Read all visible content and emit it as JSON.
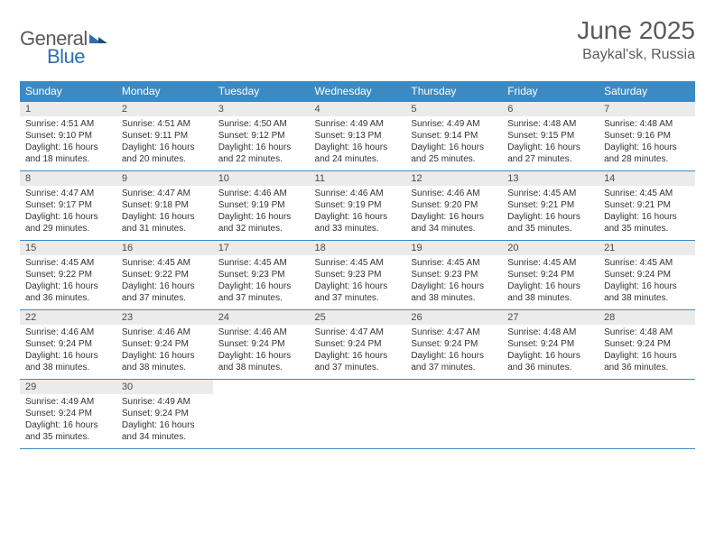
{
  "brand": {
    "part1": "General",
    "part2": "Blue"
  },
  "title": "June 2025",
  "location": "Baykal'sk, Russia",
  "colors": {
    "header_bg": "#3b8ac4",
    "header_text": "#ffffff",
    "rule": "#3b8ac4",
    "daynum_bg": "#ebebeb",
    "text": "#333333",
    "title_text": "#5a5a5a",
    "brand_gray": "#5a5a5a",
    "brand_blue": "#2f6fab"
  },
  "typography": {
    "title_fontsize": 28,
    "location_fontsize": 16,
    "dayhead_fontsize": 12,
    "daynum_fontsize": 11,
    "body_fontsize": 10
  },
  "day_headers": [
    "Sunday",
    "Monday",
    "Tuesday",
    "Wednesday",
    "Thursday",
    "Friday",
    "Saturday"
  ],
  "weeks": [
    [
      {
        "n": "1",
        "sr": "4:51 AM",
        "ss": "9:10 PM",
        "dl": "16 hours and 18 minutes."
      },
      {
        "n": "2",
        "sr": "4:51 AM",
        "ss": "9:11 PM",
        "dl": "16 hours and 20 minutes."
      },
      {
        "n": "3",
        "sr": "4:50 AM",
        "ss": "9:12 PM",
        "dl": "16 hours and 22 minutes."
      },
      {
        "n": "4",
        "sr": "4:49 AM",
        "ss": "9:13 PM",
        "dl": "16 hours and 24 minutes."
      },
      {
        "n": "5",
        "sr": "4:49 AM",
        "ss": "9:14 PM",
        "dl": "16 hours and 25 minutes."
      },
      {
        "n": "6",
        "sr": "4:48 AM",
        "ss": "9:15 PM",
        "dl": "16 hours and 27 minutes."
      },
      {
        "n": "7",
        "sr": "4:48 AM",
        "ss": "9:16 PM",
        "dl": "16 hours and 28 minutes."
      }
    ],
    [
      {
        "n": "8",
        "sr": "4:47 AM",
        "ss": "9:17 PM",
        "dl": "16 hours and 29 minutes."
      },
      {
        "n": "9",
        "sr": "4:47 AM",
        "ss": "9:18 PM",
        "dl": "16 hours and 31 minutes."
      },
      {
        "n": "10",
        "sr": "4:46 AM",
        "ss": "9:19 PM",
        "dl": "16 hours and 32 minutes."
      },
      {
        "n": "11",
        "sr": "4:46 AM",
        "ss": "9:19 PM",
        "dl": "16 hours and 33 minutes."
      },
      {
        "n": "12",
        "sr": "4:46 AM",
        "ss": "9:20 PM",
        "dl": "16 hours and 34 minutes."
      },
      {
        "n": "13",
        "sr": "4:45 AM",
        "ss": "9:21 PM",
        "dl": "16 hours and 35 minutes."
      },
      {
        "n": "14",
        "sr": "4:45 AM",
        "ss": "9:21 PM",
        "dl": "16 hours and 35 minutes."
      }
    ],
    [
      {
        "n": "15",
        "sr": "4:45 AM",
        "ss": "9:22 PM",
        "dl": "16 hours and 36 minutes."
      },
      {
        "n": "16",
        "sr": "4:45 AM",
        "ss": "9:22 PM",
        "dl": "16 hours and 37 minutes."
      },
      {
        "n": "17",
        "sr": "4:45 AM",
        "ss": "9:23 PM",
        "dl": "16 hours and 37 minutes."
      },
      {
        "n": "18",
        "sr": "4:45 AM",
        "ss": "9:23 PM",
        "dl": "16 hours and 37 minutes."
      },
      {
        "n": "19",
        "sr": "4:45 AM",
        "ss": "9:23 PM",
        "dl": "16 hours and 38 minutes."
      },
      {
        "n": "20",
        "sr": "4:45 AM",
        "ss": "9:24 PM",
        "dl": "16 hours and 38 minutes."
      },
      {
        "n": "21",
        "sr": "4:45 AM",
        "ss": "9:24 PM",
        "dl": "16 hours and 38 minutes."
      }
    ],
    [
      {
        "n": "22",
        "sr": "4:46 AM",
        "ss": "9:24 PM",
        "dl": "16 hours and 38 minutes."
      },
      {
        "n": "23",
        "sr": "4:46 AM",
        "ss": "9:24 PM",
        "dl": "16 hours and 38 minutes."
      },
      {
        "n": "24",
        "sr": "4:46 AM",
        "ss": "9:24 PM",
        "dl": "16 hours and 38 minutes."
      },
      {
        "n": "25",
        "sr": "4:47 AM",
        "ss": "9:24 PM",
        "dl": "16 hours and 37 minutes."
      },
      {
        "n": "26",
        "sr": "4:47 AM",
        "ss": "9:24 PM",
        "dl": "16 hours and 37 minutes."
      },
      {
        "n": "27",
        "sr": "4:48 AM",
        "ss": "9:24 PM",
        "dl": "16 hours and 36 minutes."
      },
      {
        "n": "28",
        "sr": "4:48 AM",
        "ss": "9:24 PM",
        "dl": "16 hours and 36 minutes."
      }
    ],
    [
      {
        "n": "29",
        "sr": "4:49 AM",
        "ss": "9:24 PM",
        "dl": "16 hours and 35 minutes."
      },
      {
        "n": "30",
        "sr": "4:49 AM",
        "ss": "9:24 PM",
        "dl": "16 hours and 34 minutes."
      },
      null,
      null,
      null,
      null,
      null
    ]
  ],
  "labels": {
    "sunrise": "Sunrise:",
    "sunset": "Sunset:",
    "daylight": "Daylight:"
  }
}
